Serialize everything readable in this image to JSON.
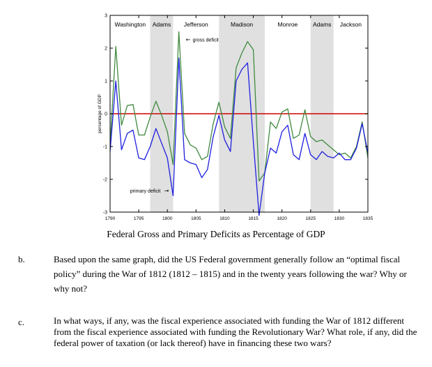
{
  "chart_data": {
    "type": "line",
    "xlim": [
      1790,
      1835
    ],
    "ylim": [
      -3,
      3
    ],
    "x_ticks": [
      1790,
      1795,
      1800,
      1805,
      1810,
      1815,
      1820,
      1825,
      1830,
      1835
    ],
    "x_tick_labels": [
      "1790",
      "1795",
      "1800",
      "1805",
      "1810",
      "1815",
      "1820",
      "1825",
      "1830",
      "1835"
    ],
    "y_ticks": [
      -3,
      -2,
      -1,
      0,
      1,
      2,
      3
    ],
    "y_tick_labels": [
      "-3",
      "-2",
      "-1",
      "0",
      "1",
      "2",
      "3"
    ],
    "ylabel": "percentage of GDP",
    "zero_line_color": "#d00000",
    "shaded_color": "#e0e0e0",
    "presidents": [
      {
        "name": "Washington",
        "start": 1789,
        "end": 1797,
        "shaded": false
      },
      {
        "name": "Adams",
        "start": 1797,
        "end": 1801,
        "shaded": true
      },
      {
        "name": "Jefferson",
        "start": 1801,
        "end": 1809,
        "shaded": false
      },
      {
        "name": "Madison",
        "start": 1809,
        "end": 1817,
        "shaded": true
      },
      {
        "name": "Monroe",
        "start": 1817,
        "end": 1825,
        "shaded": false
      },
      {
        "name": "Adams",
        "start": 1825,
        "end": 1829,
        "shaded": true
      },
      {
        "name": "Jackson",
        "start": 1829,
        "end": 1837,
        "shaded": false
      }
    ],
    "annotations": [
      {
        "text": "gross deficit",
        "arrow": "←",
        "x": 1803.2,
        "y": 2.2
      },
      {
        "text": "primary deficit",
        "arrow": "→",
        "x": 1793.5,
        "y": -2.4
      }
    ],
    "series": [
      {
        "name": "gross deficit",
        "color": "#3f8a3f",
        "x": [
          1790,
          1791,
          1792,
          1793,
          1794,
          1795,
          1796,
          1797,
          1798,
          1799,
          1800,
          1801,
          1802,
          1803,
          1804,
          1805,
          1806,
          1807,
          1808,
          1809,
          1810,
          1811,
          1812,
          1813,
          1814,
          1815,
          1816,
          1817,
          1818,
          1819,
          1820,
          1821,
          1822,
          1823,
          1824,
          1825,
          1826,
          1827,
          1828,
          1829,
          1830,
          1831,
          1832,
          1833,
          1834,
          1835
        ],
        "y": [
          -0.95,
          2.05,
          -0.35,
          0.25,
          0.28,
          -0.65,
          -0.65,
          -0.1,
          0.38,
          -0.05,
          -0.55,
          -1.55,
          2.5,
          -0.6,
          -0.95,
          -1.05,
          -1.4,
          -1.3,
          -0.3,
          0.35,
          -0.4,
          -0.75,
          1.4,
          1.85,
          2.2,
          1.95,
          -2.05,
          -1.8,
          -0.25,
          -0.45,
          0.05,
          0.15,
          -0.75,
          -0.65,
          0.12,
          -0.7,
          -0.85,
          -0.8,
          -0.95,
          -1.1,
          -1.25,
          -1.2,
          -1.35,
          -1.0,
          -0.25,
          -1.35
        ]
      },
      {
        "name": "primary deficit",
        "color": "#1f1fe0",
        "x": [
          1790,
          1791,
          1792,
          1793,
          1794,
          1795,
          1796,
          1797,
          1798,
          1799,
          1800,
          1801,
          1802,
          1803,
          1804,
          1805,
          1806,
          1807,
          1808,
          1809,
          1810,
          1811,
          1812,
          1813,
          1814,
          1815,
          1816,
          1817,
          1818,
          1819,
          1820,
          1821,
          1822,
          1823,
          1824,
          1825,
          1826,
          1827,
          1828,
          1829,
          1830,
          1831,
          1832,
          1833,
          1834,
          1835
        ],
        "y": [
          -1.15,
          1.0,
          -1.1,
          -0.6,
          -0.5,
          -1.35,
          -1.4,
          -1.0,
          -0.45,
          -0.9,
          -1.35,
          -2.5,
          1.7,
          -1.4,
          -1.5,
          -1.55,
          -1.95,
          -1.7,
          -0.7,
          -0.05,
          -0.8,
          -1.15,
          1.0,
          1.35,
          1.55,
          -0.85,
          -3.1,
          -1.8,
          -1.05,
          -1.2,
          -0.55,
          -0.35,
          -1.25,
          -1.4,
          -0.6,
          -1.25,
          -1.4,
          -1.15,
          -1.3,
          -1.35,
          -1.2,
          -1.4,
          -1.4,
          -1.05,
          -0.3,
          -1.2
        ]
      }
    ]
  },
  "caption": "Federal Gross and Primary Deficits as Percentage of GDP",
  "questions": [
    {
      "letter": "b.",
      "text": "Based upon the same graph, did the US Federal government generally follow an “optimal fiscal policy” during the War of 1812 (1812 – 1815) and in the twenty years following the war? Why or why not?"
    },
    {
      "letter": "c.",
      "text": "In what ways, if any, was the fiscal experience associated with funding the War of 1812 different from the fiscal experience associated with funding the Revolutionary War? What role, if any, did the federal power of taxation (or lack thereof) have in financing these two wars?"
    }
  ]
}
